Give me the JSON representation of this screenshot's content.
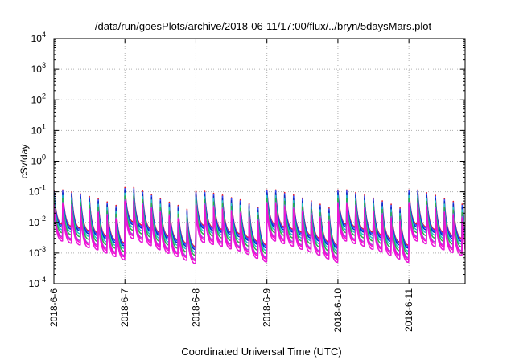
{
  "chart_data": {
    "type": "line",
    "title": "/data/run/goesPlots/archive/2018-06-11/17:00/flux/../bryn/5daysMars.plot",
    "xlabel": "Coordinated Universal Time (UTC)",
    "ylabel": "cSv/day",
    "yscale": "log",
    "ylim": [
      0.0001,
      10000
    ],
    "xlim": [
      "2018-06-06 00:00",
      "2018-06-11 19:00"
    ],
    "grid": true,
    "y_ticks": [
      {
        "value": 0.0001,
        "base": "10",
        "exp": "-4"
      },
      {
        "value": 0.001,
        "base": "10",
        "exp": "-3"
      },
      {
        "value": 0.01,
        "base": "10",
        "exp": "-2"
      },
      {
        "value": 0.1,
        "base": "10",
        "exp": "-1"
      },
      {
        "value": 1,
        "base": "10",
        "exp": "0"
      },
      {
        "value": 10,
        "base": "10",
        "exp": "1"
      },
      {
        "value": 100,
        "base": "10",
        "exp": "2"
      },
      {
        "value": 1000,
        "base": "10",
        "exp": "3"
      },
      {
        "value": 10000,
        "base": "10",
        "exp": "4"
      }
    ],
    "x_ticks": [
      {
        "value": "2018-06-06",
        "label": "2018-6-6"
      },
      {
        "value": "2018-06-07",
        "label": "2018-6-7"
      },
      {
        "value": "2018-06-08",
        "label": "2018-6-8"
      },
      {
        "value": "2018-06-09",
        "label": "2018-6-9"
      },
      {
        "value": "2018-06-10",
        "label": "2018-6-10"
      },
      {
        "value": "2018-06-11",
        "label": "2018-6-11"
      }
    ],
    "sawtooth": {
      "cycle_hours": 3,
      "peak_ratio_levels": [
        1.0,
        0.8,
        0.65,
        0.5,
        0.4,
        0.32,
        0.25,
        0.2
      ],
      "trough_ratio": 0.07
    },
    "peak_envelope": [
      {
        "x": "2018-06-06 00:00",
        "y": 0.1
      },
      {
        "x": "2018-06-06 12:00",
        "y": 0.13
      },
      {
        "x": "2018-06-07 00:00",
        "y": 0.12
      },
      {
        "x": "2018-06-07 12:00",
        "y": 0.1
      },
      {
        "x": "2018-06-08 00:00",
        "y": 0.09
      },
      {
        "x": "2018-06-08 12:00",
        "y": 0.12
      },
      {
        "x": "2018-06-09 00:00",
        "y": 0.1
      },
      {
        "x": "2018-06-09 12:00",
        "y": 0.11
      },
      {
        "x": "2018-06-10 00:00",
        "y": 0.1
      },
      {
        "x": "2018-06-10 12:00",
        "y": 0.11
      },
      {
        "x": "2018-06-11 00:00",
        "y": 0.1
      },
      {
        "x": "2018-06-11 19:00",
        "y": 0.11
      }
    ],
    "series": [
      {
        "color": "#e8182a",
        "peak_scale": 1.15
      },
      {
        "color": "#3355ff",
        "peak_scale": 1.05
      },
      {
        "color": "#0a2ec8",
        "peak_scale": 0.92
      },
      {
        "color": "#22c4c8",
        "peak_scale": 0.75
      },
      {
        "color": "#2ab34a",
        "peak_scale": 0.6
      },
      {
        "color": "#9b59d0",
        "peak_scale": 0.45
      },
      {
        "color": "#ff00d4",
        "peak_scale": 0.4
      },
      {
        "color": "#e81ad8",
        "peak_scale": 0.32
      }
    ]
  }
}
